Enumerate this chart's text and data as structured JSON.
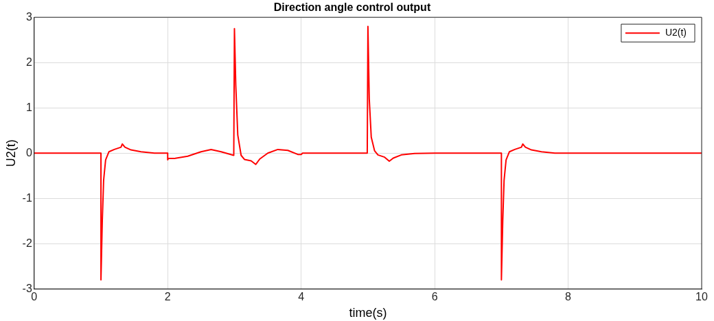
{
  "chart_data": {
    "type": "line",
    "title": "Direction angle control output",
    "xlabel": "time(s)",
    "ylabel": "U2(t)",
    "xlim": [
      0,
      10
    ],
    "xticks": [
      0,
      2,
      4,
      6,
      8,
      10
    ],
    "ylim": [
      -3,
      3
    ],
    "yticks": [
      -3,
      -2,
      -1,
      0,
      1,
      2,
      3
    ],
    "grid": true,
    "legend": "top right",
    "marker": "none",
    "line_style": "solid",
    "series": [
      {
        "name": "U2(t)",
        "color": "#ff0000",
        "x": [
          0,
          1,
          1,
          1.02,
          1.04,
          1.07,
          1.12,
          1.2,
          1.3,
          1.32,
          1.36,
          1.45,
          1.6,
          1.8,
          2,
          2,
          2.01,
          2.1,
          2.3,
          2.5,
          2.65,
          2.8,
          2.99,
          3,
          3.02,
          3.05,
          3.1,
          3.15,
          3.25,
          3.32,
          3.38,
          3.5,
          3.65,
          3.8,
          3.95,
          4,
          4.02,
          4.99,
          5,
          5.02,
          5.05,
          5.1,
          5.15,
          5.25,
          5.32,
          5.38,
          5.5,
          5.7,
          6,
          7,
          7,
          7.02,
          7.04,
          7.07,
          7.12,
          7.2,
          7.3,
          7.32,
          7.36,
          7.45,
          7.6,
          7.8,
          8,
          10
        ],
        "values": [
          0,
          0,
          -2.8,
          -1.5,
          -0.6,
          -0.15,
          0.03,
          0.08,
          0.13,
          0.2,
          0.13,
          0.07,
          0.03,
          0,
          0,
          -0.15,
          -0.12,
          -0.12,
          -0.07,
          0.03,
          0.08,
          0.03,
          -0.05,
          2.75,
          1.5,
          0.4,
          -0.05,
          -0.14,
          -0.17,
          -0.25,
          -0.13,
          0,
          0.08,
          0.06,
          -0.03,
          -0.03,
          0,
          0,
          2.8,
          1.2,
          0.35,
          0.05,
          -0.04,
          -0.09,
          -0.18,
          -0.11,
          -0.04,
          -0.01,
          0,
          0,
          -2.8,
          -1.5,
          -0.6,
          -0.15,
          0.03,
          0.08,
          0.13,
          0.2,
          0.13,
          0.07,
          0.03,
          0,
          0,
          0
        ]
      }
    ]
  }
}
